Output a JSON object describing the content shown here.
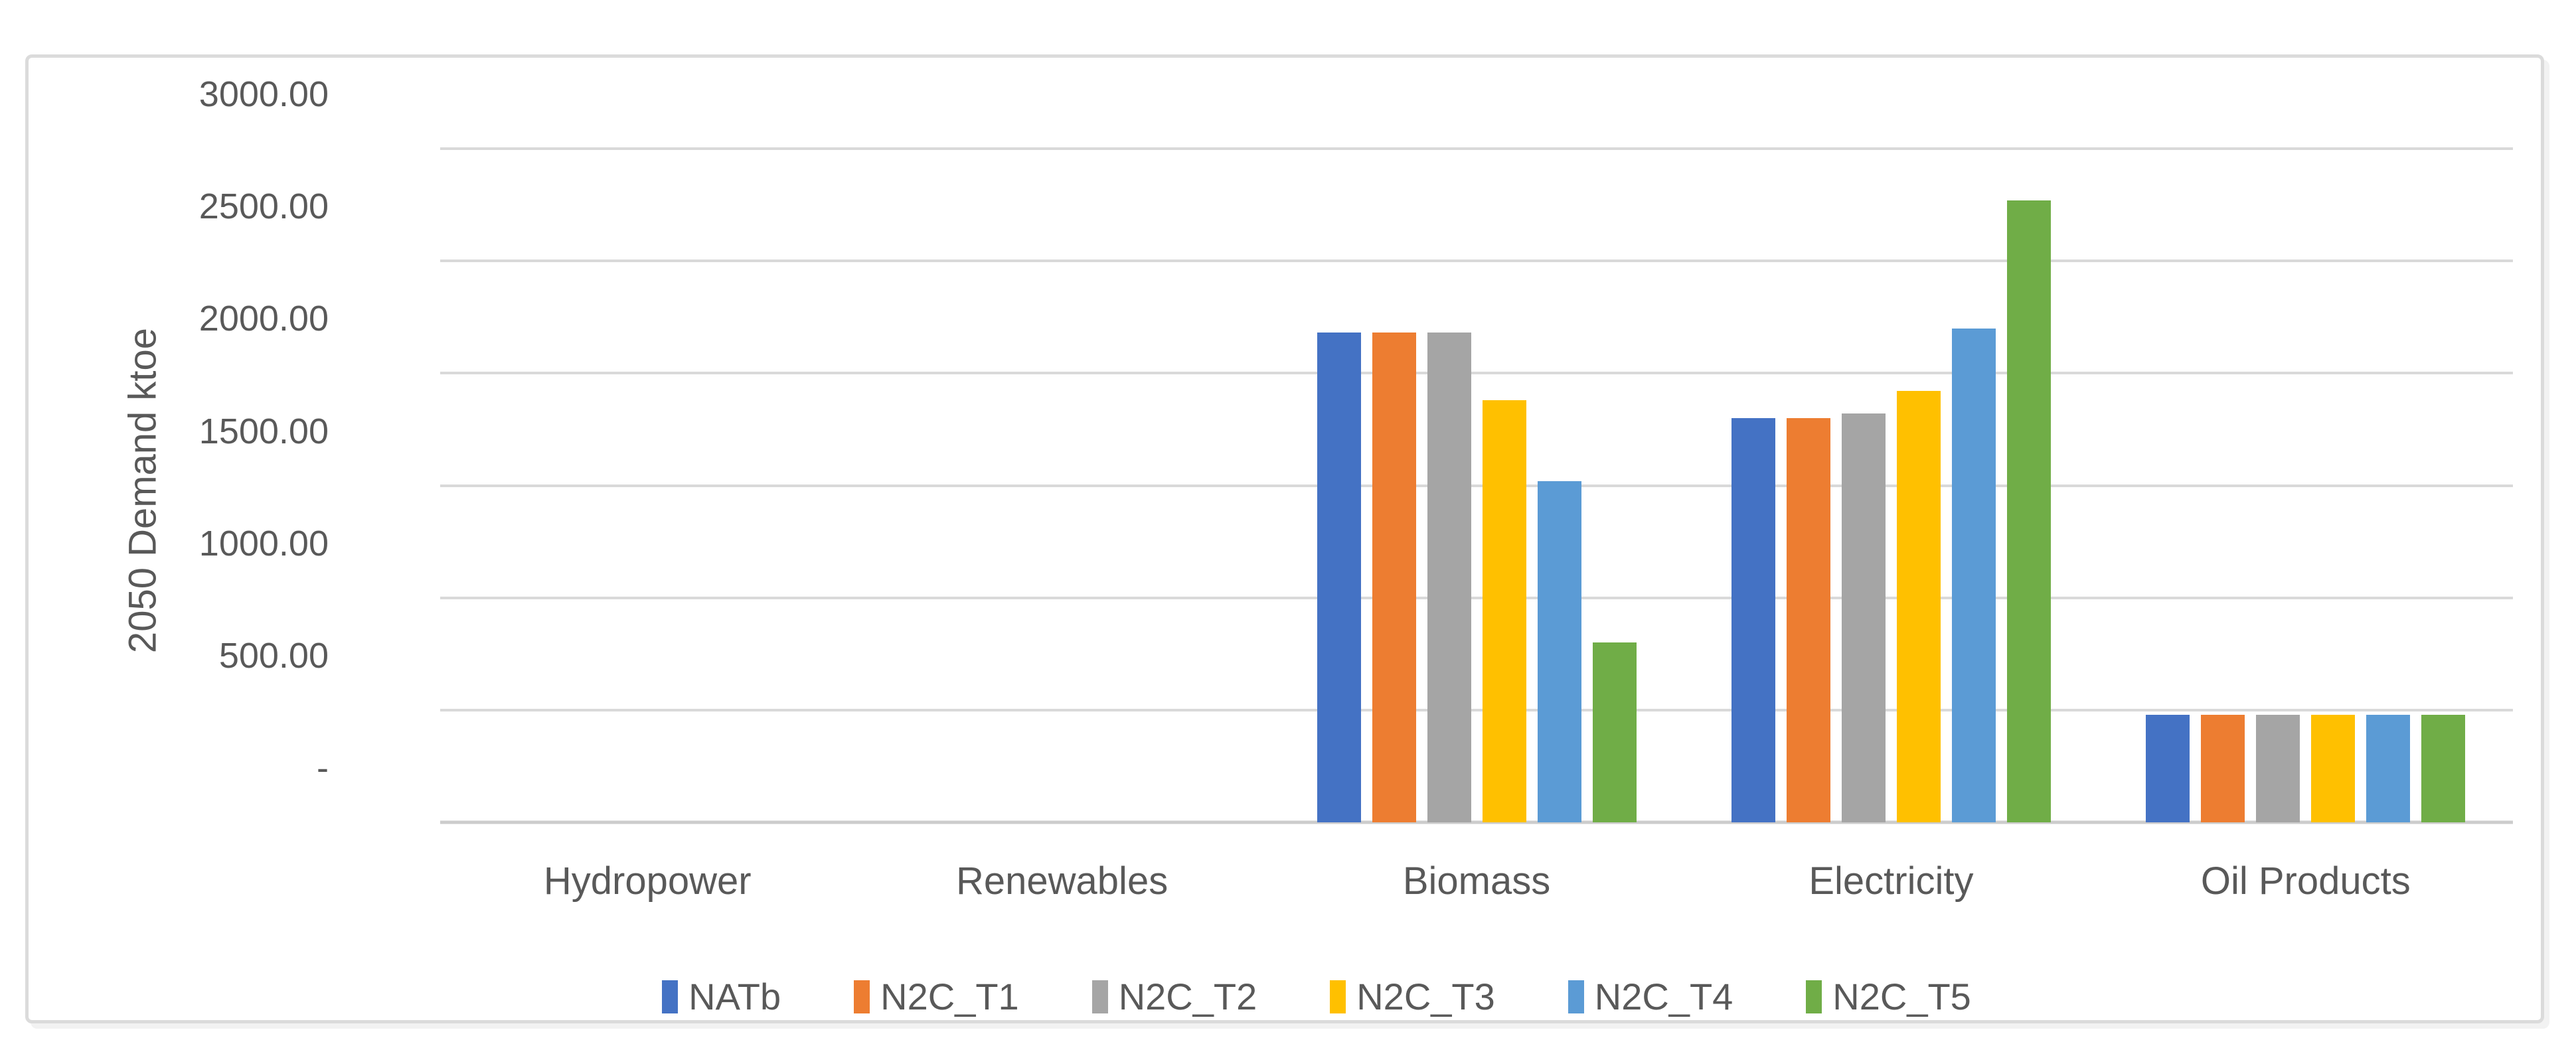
{
  "chart_data": {
    "type": "bar",
    "title": "",
    "xlabel": "",
    "ylabel": "2050 Demand ktoe",
    "unit": "ktoe",
    "ylim": [
      0,
      3000
    ],
    "ytick_interval": 500,
    "yticks_top_down": [
      {
        "value": 3000,
        "label": "3000.00"
      },
      {
        "value": 2500,
        "label": "2500.00"
      },
      {
        "value": 2000,
        "label": "2000.00"
      },
      {
        "value": 1500,
        "label": "1500.00"
      },
      {
        "value": 1000,
        "label": "1000.00"
      },
      {
        "value": 500,
        "label": "500.00"
      },
      {
        "value": 0,
        "label": "-"
      }
    ],
    "grid": true,
    "legend_position": "bottom",
    "categories": [
      "Hydropower",
      "Renewables",
      "Biomass",
      "Electricity",
      "Oil Products"
    ],
    "series": [
      {
        "name": "NATb",
        "color": "#4472C4",
        "values": [
          0,
          0,
          2180,
          1800,
          480
        ]
      },
      {
        "name": "N2C_T1",
        "color": "#ED7D31",
        "values": [
          0,
          0,
          2180,
          1800,
          480
        ]
      },
      {
        "name": "N2C_T2",
        "color": "#A5A5A5",
        "values": [
          0,
          0,
          2180,
          1820,
          480
        ]
      },
      {
        "name": "N2C_T3",
        "color": "#FFC000",
        "values": [
          0,
          0,
          1880,
          1920,
          480
        ]
      },
      {
        "name": "N2C_T4",
        "color": "#5B9BD5",
        "values": [
          0,
          0,
          1520,
          2200,
          480
        ]
      },
      {
        "name": "N2C_T5",
        "color": "#70AD47",
        "values": [
          0,
          0,
          800,
          2770,
          480
        ]
      }
    ],
    "colors": {
      "gridline": "#d9d9d9",
      "axis_text": "#595959",
      "frame_border": "#dbdbdb"
    }
  }
}
